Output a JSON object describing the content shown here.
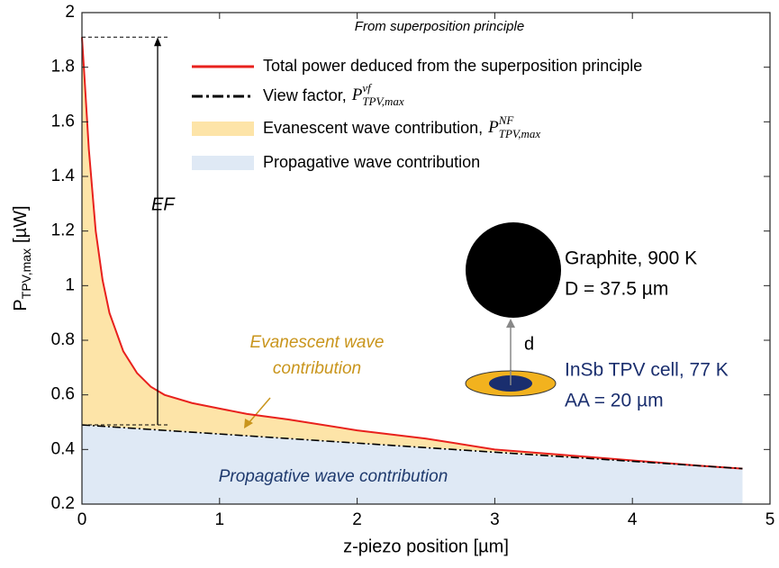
{
  "chart_data": {
    "type": "line",
    "title": "From superposition principle",
    "xlabel": "z-piezo position [µm]",
    "ylabel": {
      "base": "P",
      "sub": "TPV,max",
      "unit": "[µW]"
    },
    "xlim": [
      0,
      5
    ],
    "xticks": [
      0,
      1,
      2,
      3,
      4,
      5
    ],
    "ylim": [
      0.2,
      2
    ],
    "yticks": [
      0.2,
      0.4,
      0.6,
      0.8,
      1,
      1.2,
      1.4,
      1.6,
      1.8,
      2
    ],
    "series": [
      {
        "name": "Total power deduced from the superposition principle",
        "color": "#e8211d",
        "style": "line",
        "x": [
          0,
          0.02,
          0.05,
          0.1,
          0.15,
          0.2,
          0.3,
          0.4,
          0.5,
          0.6,
          0.8,
          1,
          1.2,
          1.5,
          2,
          2.5,
          3,
          3.5,
          4,
          4.5,
          4.8
        ],
        "values": [
          1.91,
          1.75,
          1.5,
          1.2,
          1.02,
          0.9,
          0.76,
          0.68,
          0.63,
          0.6,
          0.57,
          0.55,
          0.53,
          0.51,
          0.47,
          0.44,
          0.4,
          0.38,
          0.36,
          0.34,
          0.33
        ]
      },
      {
        "name": "View factor,",
        "symbol": {
          "base": "P",
          "sup": "vf",
          "sub": "TPV,max"
        },
        "color": "#000000",
        "style": "dashdot",
        "x": [
          0,
          4.8
        ],
        "values": [
          0.49,
          0.33
        ]
      },
      {
        "name": "Evanescent wave contribution,",
        "symbol": {
          "base": "P",
          "sup": "NF",
          "sub": "TPV,max"
        },
        "color": "#fde4a8",
        "style": "fill_between"
      },
      {
        "name": "Propagative wave contribution",
        "color": "#dfe9f5",
        "style": "fill_below"
      }
    ],
    "annotations": {
      "ef": "EF",
      "evanescent": [
        "Evanescent wave",
        "contribution"
      ],
      "propagative": "Propagative wave contribution"
    },
    "inset": {
      "sphere": [
        "Graphite, 900 K",
        "D = 37.5 µm"
      ],
      "gap": "d",
      "cell": [
        "InSb TPV cell, 77 K",
        "AA = 20 µm"
      ]
    }
  }
}
